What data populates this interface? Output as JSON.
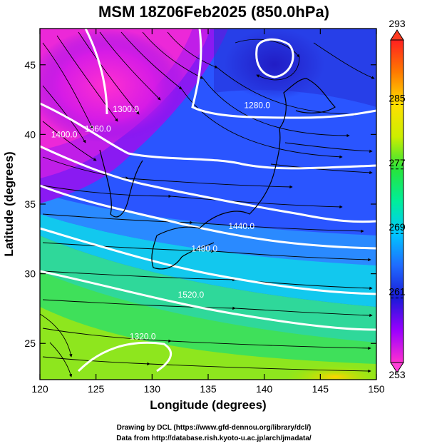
{
  "chart_data": {
    "type": "heatmap",
    "title": "MSM 18Z06Feb2025 (850.0hPa)",
    "xlabel": "Longitude (degrees)",
    "ylabel": "Latitude  (degrees)",
    "xlim": [
      120,
      150
    ],
    "ylim": [
      22.4,
      47.6
    ],
    "x_ticks": [
      "120",
      "125",
      "130",
      "135",
      "140",
      "145",
      "150"
    ],
    "y_ticks": [
      "25",
      "30",
      "35",
      "40",
      "45"
    ],
    "colorbar": {
      "min": 253,
      "max": 293,
      "ticks": [
        "253",
        "261",
        "269",
        "277",
        "285",
        "293"
      ],
      "colors": [
        "#ff2fd0",
        "#9a00ff",
        "#1a1ad8",
        "#1f6bff",
        "#00c8ff",
        "#00ee9a",
        "#28e43a",
        "#ccee00",
        "#ffe000",
        "#ff7a00",
        "#ff2020"
      ]
    },
    "contour_labels": [
      "1280.0",
      "1360.0",
      "1400.0",
      "1440.0",
      "1480.0",
      "1520.0",
      "1320.0",
      "1300.0"
    ],
    "credits": [
      "Drawing by DCL (https://www.gfd-dennou.org/library/dcl/)",
      "Data from http://database.rish.kyoto-u.ac.jp/arch/jmadata/"
    ]
  }
}
